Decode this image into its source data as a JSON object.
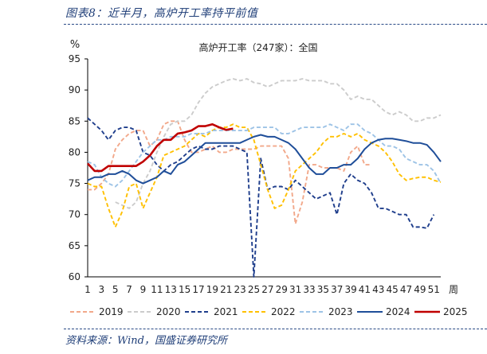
{
  "header": {
    "figure_title": "图表8：近半月，高炉开工率持平前值"
  },
  "footer": {
    "source": "资料来源：Wind，国盛证券研究所"
  },
  "colors": {
    "2019": "#f2a88a",
    "2020": "#cccccc",
    "2021": "#1f3e8c",
    "2022": "#ffc000",
    "2023": "#9dc3e6",
    "2024": "#1f4e99",
    "2025": "#c00000"
  },
  "chart_data": {
    "type": "line",
    "title": "高炉开工率（247家）：全国",
    "ylabel": "%",
    "xlabel": "周",
    "ylim": [
      60,
      95
    ],
    "yticks": [
      60,
      65,
      70,
      75,
      80,
      85,
      90,
      95
    ],
    "xlim": [
      1,
      52
    ],
    "xticks": [
      1,
      3,
      5,
      7,
      9,
      11,
      13,
      15,
      17,
      19,
      21,
      23,
      25,
      27,
      29,
      31,
      33,
      35,
      37,
      39,
      41,
      43,
      45,
      47,
      49,
      51
    ],
    "legend_position": "bottom",
    "series": [
      {
        "name": "2019",
        "style": "dashed",
        "values": [
          74.0,
          74.0,
          75.0,
          76.5,
          80.5,
          82.0,
          83.0,
          83.5,
          83.5,
          81.0,
          82.0,
          84.5,
          85.0,
          85.0,
          82.0,
          80.0,
          80.0,
          80.5,
          81.0,
          80.0,
          80.0,
          80.5,
          80.5,
          80.5,
          80.5,
          81.0,
          81.0,
          81.0,
          81.0,
          79.0,
          68.5,
          72.0,
          78.0,
          78.0,
          77.5,
          77.5,
          77.5,
          77.0,
          80.0,
          81.0,
          78.0,
          78.0,
          null,
          null,
          null,
          null,
          null,
          null,
          null,
          null,
          null,
          null
        ]
      },
      {
        "name": "2020",
        "style": "dashed",
        "values": [
          null,
          null,
          null,
          null,
          72.0,
          71.5,
          71.0,
          72.0,
          75.0,
          77.0,
          80.0,
          82.5,
          84.5,
          85.0,
          85.0,
          86.0,
          88.0,
          89.5,
          90.5,
          91.0,
          91.5,
          91.8,
          91.5,
          91.8,
          91.2,
          91.0,
          90.5,
          91.0,
          91.5,
          91.5,
          91.5,
          91.8,
          91.5,
          91.5,
          91.5,
          91.0,
          91.0,
          90.0,
          88.5,
          89.0,
          88.5,
          88.5,
          87.5,
          86.5,
          86.0,
          86.5,
          86.0,
          85.0,
          85.0,
          85.5,
          85.5,
          86.0
        ]
      },
      {
        "name": "2021",
        "style": "dashed",
        "values": [
          85.5,
          84.5,
          83.5,
          82.0,
          83.5,
          84.0,
          84.0,
          83.5,
          80.0,
          79.5,
          78.0,
          77.0,
          78.0,
          78.5,
          79.5,
          80.5,
          81.0,
          80.5,
          80.5,
          81.0,
          81.0,
          81.0,
          80.5,
          80.0,
          60.0,
          79.0,
          74.0,
          74.5,
          74.5,
          74.0,
          75.5,
          74.5,
          73.5,
          72.5,
          73.0,
          73.5,
          70.0,
          75.0,
          76.5,
          75.5,
          75.0,
          73.5,
          71.0,
          71.0,
          70.5,
          70.0,
          70.0,
          68.0,
          68.0,
          67.8,
          70.0,
          null
        ]
      },
      {
        "name": "2022",
        "style": "dashed",
        "values": [
          75.0,
          74.5,
          74.5,
          71.0,
          68.0,
          70.5,
          74.5,
          75.0,
          71.0,
          73.5,
          76.0,
          79.5,
          80.0,
          80.5,
          81.0,
          82.0,
          83.0,
          82.5,
          83.5,
          84.0,
          84.0,
          84.5,
          84.0,
          84.0,
          82.0,
          78.0,
          74.0,
          71.0,
          71.5,
          74.0,
          77.0,
          78.0,
          79.0,
          80.0,
          81.5,
          82.5,
          82.5,
          83.0,
          82.5,
          83.0,
          82.0,
          81.5,
          81.0,
          80.0,
          78.5,
          76.5,
          75.5,
          75.8,
          76.0,
          76.0,
          75.5,
          75.2
        ]
      },
      {
        "name": "2023",
        "style": "dashed",
        "values": [
          78.5,
          78.0,
          76.0,
          75.0,
          74.5,
          75.5,
          77.0,
          78.5,
          80.0,
          81.0,
          82.0,
          82.0,
          82.5,
          82.5,
          82.5,
          83.0,
          83.0,
          83.0,
          83.5,
          83.5,
          83.5,
          83.5,
          83.5,
          83.5,
          84.0,
          84.0,
          84.0,
          84.0,
          83.0,
          83.0,
          83.5,
          84.0,
          84.0,
          84.0,
          84.0,
          84.5,
          84.0,
          83.5,
          84.5,
          84.5,
          83.5,
          83.0,
          82.0,
          81.0,
          81.0,
          80.5,
          79.0,
          78.5,
          78.0,
          78.0,
          77.0,
          75.0
        ]
      },
      {
        "name": "2024",
        "style": "solid",
        "values": [
          75.5,
          76.0,
          76.0,
          76.5,
          76.5,
          77.0,
          76.5,
          75.5,
          75.0,
          75.5,
          76.0,
          77.0,
          76.5,
          78.0,
          78.5,
          79.5,
          80.5,
          81.5,
          81.5,
          81.5,
          81.5,
          81.5,
          81.5,
          82.0,
          82.5,
          82.8,
          82.5,
          82.5,
          82.0,
          81.5,
          80.5,
          79.0,
          77.5,
          76.5,
          76.5,
          77.5,
          77.5,
          78.0,
          78.0,
          79.0,
          80.5,
          81.5,
          82.0,
          82.2,
          82.2,
          82.0,
          81.8,
          81.5,
          81.5,
          81.2,
          80.0,
          78.5
        ]
      },
      {
        "name": "2025",
        "style": "solid",
        "values": [
          78.2,
          77.0,
          77.0,
          77.8,
          77.8,
          77.8,
          77.8,
          77.8,
          78.5,
          79.5,
          81.0,
          82.0,
          82.0,
          83.0,
          83.2,
          83.5,
          84.2,
          84.2,
          84.5,
          84.0,
          83.6,
          83.8,
          null,
          null,
          null,
          null,
          null,
          null,
          null,
          null,
          null,
          null,
          null,
          null,
          null,
          null,
          null,
          null,
          null,
          null,
          null,
          null,
          null,
          null,
          null,
          null,
          null,
          null,
          null,
          null,
          null,
          null
        ]
      }
    ]
  }
}
